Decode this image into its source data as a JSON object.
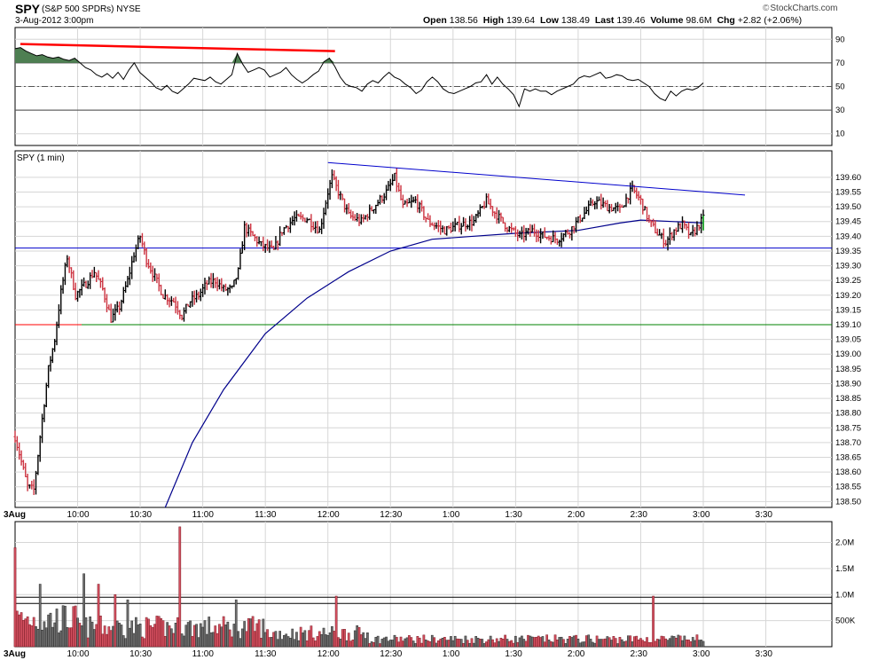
{
  "header": {
    "symbol": "SPY",
    "description": "(S&P 500 SPDRs)",
    "exchange": "NYSE",
    "datetime": "3-Aug-2012 3:00pm",
    "open_label": "Open",
    "open": "138.56",
    "high_label": "High",
    "high": "139.64",
    "low_label": "Low",
    "low": "138.49",
    "last_label": "Last",
    "last": "139.46",
    "volume_label": "Volume",
    "volume": "98.6M",
    "chg_label": "Chg",
    "chg": "+2.82 (+2.06%)",
    "brand": "StockCharts.com",
    "brand_mark": "©"
  },
  "colors": {
    "up": "#000000",
    "down": "#cc3340",
    "vol_down": "#d55060",
    "vol_up": "#707070",
    "trend_blue": "#0000cc",
    "trend_red": "#ff0000",
    "support_green": "#008000",
    "ma_blue": "#00008b",
    "osc_fill": "#4e7f52",
    "grid": "#d6d6d6"
  },
  "chart_data": [
    {
      "type": "line",
      "panel": "oscillator",
      "y_ticks": [
        90,
        70,
        50,
        30,
        10
      ],
      "ylim": [
        0,
        100
      ],
      "overbought": 70,
      "oversold": 30,
      "center": 50,
      "values": [
        82,
        83,
        80,
        78,
        76,
        77,
        75,
        74,
        75,
        73,
        72,
        74,
        70,
        66,
        64,
        60,
        58,
        61,
        57,
        62,
        56,
        64,
        70,
        62,
        58,
        54,
        49,
        47,
        51,
        46,
        44,
        48,
        52,
        57,
        56,
        55,
        58,
        54,
        52,
        56,
        60,
        78,
        69,
        62,
        64,
        66,
        64,
        58,
        60,
        62,
        66,
        60,
        56,
        53,
        56,
        60,
        63,
        71,
        74,
        67,
        58,
        52,
        50,
        49,
        46,
        52,
        55,
        53,
        58,
        62,
        58,
        56,
        52,
        49,
        44,
        47,
        54,
        58,
        54,
        48,
        45,
        44,
        46,
        48,
        50,
        53,
        54,
        60,
        52,
        58,
        52,
        48,
        43,
        33,
        48,
        46,
        48,
        46,
        46,
        43,
        46,
        48,
        50,
        52,
        57,
        59,
        58,
        60,
        62,
        57,
        58,
        60,
        59,
        56,
        55,
        56,
        53,
        50,
        44,
        40,
        38,
        46,
        42,
        46,
        48,
        47,
        49,
        53
      ],
      "trendline": {
        "from": [
          "09:30",
          86
        ],
        "to": [
          "12:00",
          80
        ],
        "color": "#ff0000"
      }
    },
    {
      "type": "ohlc",
      "panel": "price",
      "title": "SPY (1 min)",
      "y_ticks": [
        139.6,
        139.55,
        139.5,
        139.45,
        139.4,
        139.35,
        139.3,
        139.25,
        139.2,
        139.15,
        139.1,
        139.05,
        139.0,
        138.95,
        138.9,
        138.85,
        138.8,
        138.75,
        138.7,
        138.65,
        138.6,
        138.55,
        138.5
      ],
      "x_labels": [
        "3Aug",
        "10:00",
        "10:30",
        "11:00",
        "11:30",
        "12:00",
        "12:30",
        "1:00",
        "1:30",
        "2:00",
        "2:30",
        "3:00",
        "3:30"
      ],
      "ylim": [
        138.48,
        139.69
      ],
      "anchors": [
        [
          "09:30",
          138.72
        ],
        [
          "09:36",
          138.55
        ],
        [
          "09:39",
          138.54
        ],
        [
          "09:43",
          138.78
        ],
        [
          "09:46",
          138.95
        ],
        [
          "09:49",
          139.05
        ],
        [
          "09:52",
          139.21
        ],
        [
          "09:55",
          139.33
        ],
        [
          "09:59",
          139.2
        ],
        [
          "10:04",
          139.24
        ],
        [
          "10:08",
          139.28
        ],
        [
          "10:12",
          139.22
        ],
        [
          "10:16",
          139.12
        ],
        [
          "10:20",
          139.16
        ],
        [
          "10:24",
          139.25
        ],
        [
          "10:27",
          139.34
        ],
        [
          "10:30",
          139.4
        ],
        [
          "10:33",
          139.32
        ],
        [
          "10:37",
          139.26
        ],
        [
          "10:41",
          139.2
        ],
        [
          "10:46",
          139.18
        ],
        [
          "10:50",
          139.13
        ],
        [
          "10:54",
          139.18
        ],
        [
          "10:58",
          139.2
        ],
        [
          "11:02",
          139.24
        ],
        [
          "11:06",
          139.25
        ],
        [
          "11:10",
          139.22
        ],
        [
          "11:14",
          139.22
        ],
        [
          "11:17",
          139.28
        ],
        [
          "11:20",
          139.43
        ],
        [
          "11:24",
          139.4
        ],
        [
          "11:28",
          139.37
        ],
        [
          "11:34",
          139.35
        ],
        [
          "11:38",
          139.42
        ],
        [
          "11:44",
          139.46
        ],
        [
          "11:50",
          139.46
        ],
        [
          "11:56",
          139.42
        ],
        [
          "12:00",
          139.55
        ],
        [
          "12:02",
          139.6
        ],
        [
          "12:05",
          139.55
        ],
        [
          "12:10",
          139.47
        ],
        [
          "12:16",
          139.45
        ],
        [
          "12:22",
          139.5
        ],
        [
          "12:28",
          139.55
        ],
        [
          "12:32",
          139.6
        ],
        [
          "12:36",
          139.5
        ],
        [
          "12:42",
          139.52
        ],
        [
          "12:48",
          139.45
        ],
        [
          "12:56",
          139.42
        ],
        [
          "13:04",
          139.44
        ],
        [
          "13:10",
          139.45
        ],
        [
          "13:16",
          139.52
        ],
        [
          "13:20",
          139.48
        ],
        [
          "13:26",
          139.43
        ],
        [
          "13:32",
          139.4
        ],
        [
          "13:38",
          139.42
        ],
        [
          "13:44",
          139.4
        ],
        [
          "13:50",
          139.39
        ],
        [
          "13:56",
          139.42
        ],
        [
          "14:02",
          139.47
        ],
        [
          "14:08",
          139.52
        ],
        [
          "14:14",
          139.5
        ],
        [
          "14:20",
          139.49
        ],
        [
          "14:24",
          139.54
        ],
        [
          "14:26",
          139.56
        ],
        [
          "14:30",
          139.52
        ],
        [
          "14:34",
          139.45
        ],
        [
          "14:38",
          139.41
        ],
        [
          "14:42",
          139.38
        ],
        [
          "14:46",
          139.42
        ],
        [
          "14:50",
          139.44
        ],
        [
          "14:54",
          139.4
        ],
        [
          "14:58",
          139.44
        ],
        [
          "15:00",
          139.46
        ]
      ],
      "ma_anchors": [
        [
          "10:42",
          138.48
        ],
        [
          "10:55",
          138.7
        ],
        [
          "11:10",
          138.88
        ],
        [
          "11:30",
          139.07
        ],
        [
          "11:50",
          139.19
        ],
        [
          "12:10",
          139.28
        ],
        [
          "12:30",
          139.35
        ],
        [
          "12:50",
          139.39
        ],
        [
          "13:10",
          139.4
        ],
        [
          "13:30",
          139.41
        ],
        [
          "14:00",
          139.42
        ],
        [
          "14:20",
          139.445
        ],
        [
          "14:30",
          139.455
        ],
        [
          "14:45",
          139.45
        ],
        [
          "15:00",
          139.445
        ]
      ],
      "trendline": {
        "from": [
          "12:00",
          139.65
        ],
        "to": [
          "15:20",
          139.54
        ],
        "color": "#0000cc"
      },
      "resistance": {
        "value": 139.36,
        "color": "#0000cc"
      },
      "support": {
        "value": 139.1,
        "color": "#008000"
      }
    },
    {
      "type": "bar",
      "panel": "volume",
      "y_ticks": [
        "2.0M",
        "1.5M",
        "1.0M",
        "500K"
      ],
      "y_tick_values": [
        2000000,
        1500000,
        1000000,
        500000
      ],
      "ylim": [
        0,
        2400000
      ],
      "x_labels": [
        "3Aug",
        "10:00",
        "10:30",
        "11:00",
        "11:30",
        "12:00",
        "12:30",
        "1:00",
        "1:30",
        "2:00",
        "2:30",
        "3:00",
        "3:30"
      ],
      "reference_lines": [
        950000,
        830000
      ],
      "spikes": [
        [
          "09:30",
          1900000
        ],
        [
          "09:42",
          1200000
        ],
        [
          "10:03",
          1400000
        ],
        [
          "10:10",
          1200000
        ],
        [
          "10:18",
          1000000
        ],
        [
          "10:24",
          900000
        ],
        [
          "10:49",
          2300000
        ],
        [
          "11:16",
          900000
        ],
        [
          "12:04",
          970000
        ],
        [
          "14:36",
          970000
        ]
      ]
    }
  ]
}
